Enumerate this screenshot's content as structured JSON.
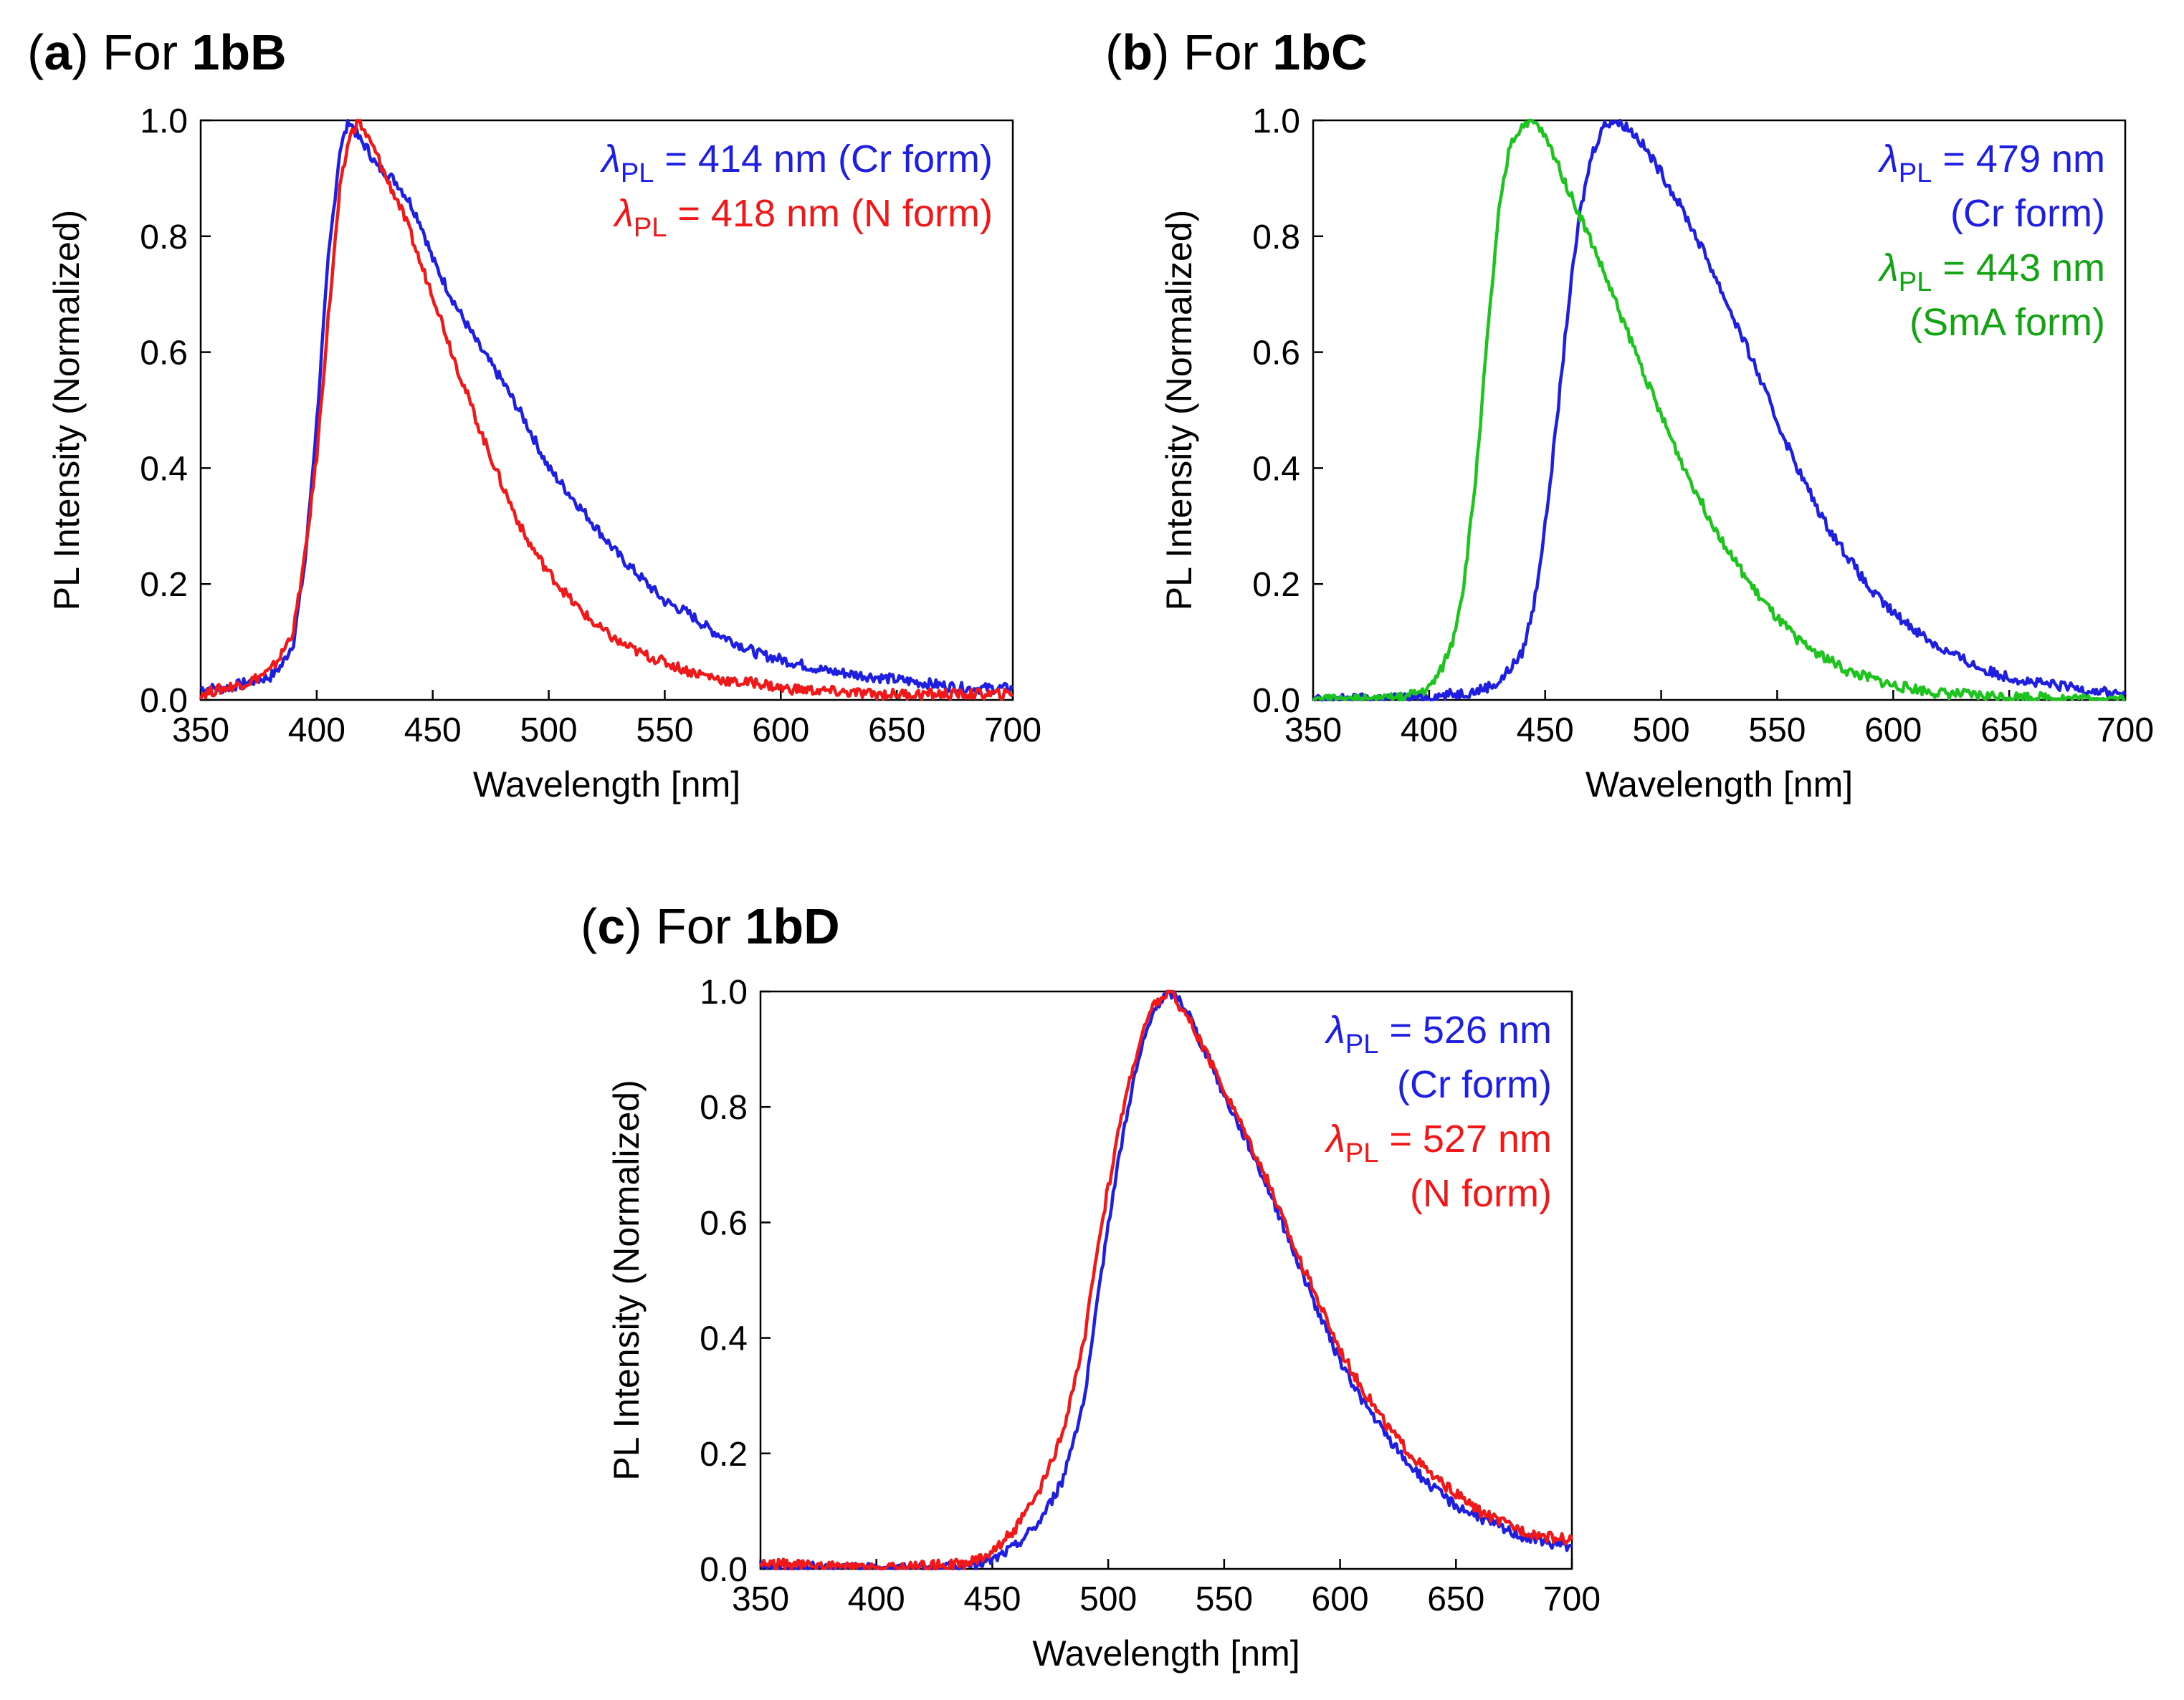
{
  "colors": {
    "cr": "#1f1fe0",
    "n": "#f01818",
    "sma": "#1ec41e",
    "sma_text": "#14a314"
  },
  "panels": [
    {
      "letter": "a",
      "prefix": "For",
      "compound": "1bB"
    },
    {
      "letter": "b",
      "prefix": "For",
      "compound": "1bC"
    },
    {
      "letter": "c",
      "prefix": "For",
      "compound": "1bD"
    }
  ],
  "chart_data": [
    {
      "type": "line",
      "title": "(a) For 1bB",
      "xlabel": "Wavelength [nm]",
      "ylabel": "PL Intensity (Normalized)",
      "xlim": [
        350,
        700
      ],
      "ylim": [
        0,
        1.0
      ],
      "xticks": [
        "350",
        "400",
        "450",
        "500",
        "550",
        "600",
        "650",
        "700"
      ],
      "yticks": [
        "0.0",
        "0.2",
        "0.4",
        "0.6",
        "0.8",
        "1.0"
      ],
      "grid": false,
      "legend_position": "top-right",
      "legend": [
        {
          "symbol": "λ",
          "subscript": "PL",
          "text": " = 414 nm (Cr form)",
          "color": "cr"
        },
        {
          "symbol": "λ",
          "subscript": "PL",
          "text": " = 418 nm (N form)",
          "color": "n"
        }
      ],
      "series": [
        {
          "color": "cr",
          "x": [
            350,
            360,
            370,
            380,
            385,
            390,
            395,
            400,
            405,
            410,
            414,
            418,
            422,
            426,
            430,
            435,
            440,
            445,
            450,
            455,
            460,
            470,
            480,
            490,
            500,
            510,
            520,
            530,
            540,
            550,
            560,
            570,
            580,
            590,
            600,
            620,
            640,
            660,
            680,
            700
          ],
          "y": [
            0.02,
            0.02,
            0.03,
            0.04,
            0.06,
            0.1,
            0.24,
            0.48,
            0.76,
            0.95,
            1.0,
            0.97,
            0.95,
            0.92,
            0.91,
            0.89,
            0.86,
            0.82,
            0.76,
            0.72,
            0.68,
            0.61,
            0.55,
            0.48,
            0.4,
            0.35,
            0.3,
            0.25,
            0.21,
            0.17,
            0.15,
            0.12,
            0.1,
            0.08,
            0.07,
            0.05,
            0.04,
            0.03,
            0.02,
            0.02
          ]
        },
        {
          "color": "n",
          "x": [
            350,
            360,
            370,
            380,
            385,
            390,
            395,
            400,
            405,
            410,
            414,
            418,
            422,
            426,
            430,
            435,
            440,
            445,
            450,
            455,
            460,
            470,
            480,
            490,
            500,
            510,
            520,
            530,
            540,
            550,
            560,
            570,
            580,
            590,
            600,
            620,
            640,
            660,
            680,
            700
          ],
          "y": [
            0.01,
            0.02,
            0.03,
            0.05,
            0.08,
            0.12,
            0.25,
            0.42,
            0.66,
            0.88,
            0.97,
            1.0,
            0.97,
            0.94,
            0.9,
            0.86,
            0.81,
            0.75,
            0.7,
            0.64,
            0.58,
            0.47,
            0.37,
            0.28,
            0.22,
            0.17,
            0.13,
            0.1,
            0.08,
            0.065,
            0.05,
            0.04,
            0.03,
            0.03,
            0.02,
            0.015,
            0.01,
            0.01,
            0.01,
            0.01
          ]
        }
      ]
    },
    {
      "type": "line",
      "title": "(b) For 1bC",
      "xlabel": "Wavelength [nm]",
      "ylabel": "PL Intensity (Normalized)",
      "xlim": [
        350,
        700
      ],
      "ylim": [
        0,
        1.0
      ],
      "xticks": [
        "350",
        "400",
        "450",
        "500",
        "550",
        "600",
        "650",
        "700"
      ],
      "yticks": [
        "0.0",
        "0.2",
        "0.4",
        "0.6",
        "0.8",
        "1.0"
      ],
      "grid": false,
      "legend_position": "top-right",
      "legend": [
        {
          "symbol": "λ",
          "subscript": "PL",
          "text": " = 479 nm",
          "color": "cr"
        },
        {
          "symbol": "",
          "subscript": "",
          "text": "(Cr form)",
          "color": "cr"
        },
        {
          "symbol": "λ",
          "subscript": "PL",
          "text": " = 443 nm",
          "color": "sma_text"
        },
        {
          "symbol": "",
          "subscript": "",
          "text": "(SmA form)",
          "color": "sma_text"
        }
      ],
      "series": [
        {
          "color": "cr",
          "x": [
            350,
            400,
            420,
            430,
            440,
            445,
            450,
            455,
            460,
            465,
            470,
            475,
            479,
            485,
            490,
            500,
            510,
            520,
            530,
            540,
            550,
            560,
            570,
            580,
            590,
            600,
            620,
            640,
            660,
            680,
            700
          ],
          "y": [
            0.0,
            0.005,
            0.015,
            0.03,
            0.08,
            0.16,
            0.3,
            0.48,
            0.68,
            0.84,
            0.94,
            0.99,
            1.0,
            0.99,
            0.97,
            0.91,
            0.84,
            0.76,
            0.67,
            0.58,
            0.48,
            0.39,
            0.31,
            0.25,
            0.19,
            0.15,
            0.09,
            0.05,
            0.03,
            0.02,
            0.01
          ]
        },
        {
          "color": "sma",
          "x": [
            350,
            380,
            390,
            400,
            405,
            410,
            415,
            420,
            425,
            430,
            435,
            440,
            443,
            447,
            450,
            455,
            460,
            470,
            480,
            490,
            500,
            510,
            520,
            530,
            540,
            550,
            560,
            580,
            600,
            620,
            640,
            660,
            680,
            700
          ],
          "y": [
            0.0,
            0.0,
            0.005,
            0.02,
            0.05,
            0.1,
            0.2,
            0.38,
            0.62,
            0.84,
            0.96,
            0.99,
            1.0,
            0.99,
            0.97,
            0.93,
            0.88,
            0.79,
            0.69,
            0.59,
            0.49,
            0.4,
            0.32,
            0.25,
            0.19,
            0.14,
            0.1,
            0.05,
            0.025,
            0.012,
            0.007,
            0.005,
            0.002,
            0.0
          ]
        }
      ]
    },
    {
      "type": "line",
      "title": "(c) For 1bD",
      "xlabel": "Wavelength [nm]",
      "ylabel": "PL Intensity (Normalized)",
      "xlim": [
        350,
        700
      ],
      "ylim": [
        0,
        1.0
      ],
      "xticks": [
        "350",
        "400",
        "450",
        "500",
        "550",
        "600",
        "650",
        "700"
      ],
      "yticks": [
        "0.0",
        "0.2",
        "0.4",
        "0.6",
        "0.8",
        "1.0"
      ],
      "grid": false,
      "legend_position": "top-right",
      "legend": [
        {
          "symbol": "λ",
          "subscript": "PL",
          "text": " = 526 nm",
          "color": "cr"
        },
        {
          "symbol": "",
          "subscript": "",
          "text": "(Cr form)",
          "color": "cr"
        },
        {
          "symbol": "λ",
          "subscript": "PL",
          "text": " = 527 nm",
          "color": "n"
        },
        {
          "symbol": "",
          "subscript": "",
          "text": "(N form)",
          "color": "n"
        }
      ],
      "series": [
        {
          "color": "cr",
          "x": [
            350,
            400,
            440,
            450,
            460,
            470,
            480,
            490,
            495,
            500,
            505,
            510,
            515,
            520,
            526,
            530,
            535,
            540,
            545,
            550,
            560,
            570,
            580,
            590,
            600,
            610,
            620,
            630,
            640,
            650,
            660,
            670,
            680,
            690,
            700
          ],
          "y": [
            0.005,
            0.0,
            0.005,
            0.015,
            0.04,
            0.08,
            0.15,
            0.3,
            0.45,
            0.6,
            0.72,
            0.83,
            0.91,
            0.97,
            1.0,
            0.99,
            0.96,
            0.91,
            0.87,
            0.82,
            0.74,
            0.65,
            0.55,
            0.45,
            0.36,
            0.29,
            0.23,
            0.18,
            0.14,
            0.11,
            0.09,
            0.07,
            0.055,
            0.045,
            0.04
          ]
        },
        {
          "color": "n",
          "x": [
            350,
            400,
            440,
            450,
            460,
            470,
            480,
            490,
            495,
            500,
            505,
            510,
            515,
            520,
            527,
            530,
            535,
            540,
            545,
            550,
            560,
            570,
            580,
            590,
            600,
            610,
            620,
            630,
            640,
            650,
            660,
            670,
            680,
            690,
            700
          ],
          "y": [
            0.01,
            0.0,
            0.01,
            0.03,
            0.07,
            0.13,
            0.23,
            0.4,
            0.55,
            0.66,
            0.77,
            0.86,
            0.93,
            0.98,
            1.0,
            0.98,
            0.95,
            0.91,
            0.87,
            0.83,
            0.75,
            0.66,
            0.56,
            0.47,
            0.38,
            0.31,
            0.25,
            0.2,
            0.16,
            0.13,
            0.1,
            0.08,
            0.065,
            0.055,
            0.05
          ]
        }
      ]
    }
  ]
}
